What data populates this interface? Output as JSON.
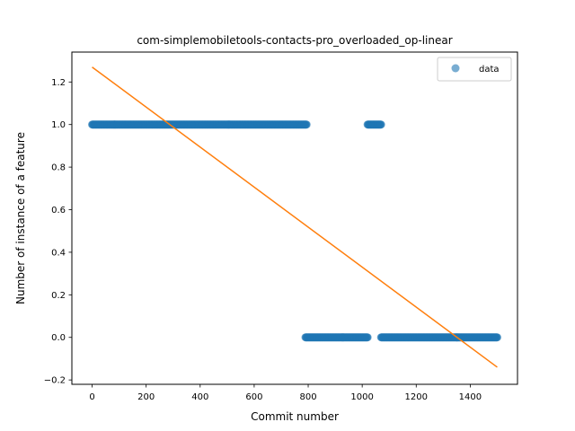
{
  "chart_data": {
    "type": "scatter",
    "title": "com-simplemobiletools-contacts-pro_overloaded_op-linear",
    "xlabel": "Commit number",
    "ylabel": "Number of instance of a feature",
    "xlim": [
      -75,
      1575
    ],
    "ylim": [
      -0.2205,
      1.3405
    ],
    "xticks": [
      0,
      200,
      400,
      600,
      800,
      1000,
      1200,
      1400
    ],
    "yticks": [
      -0.2,
      0.0,
      0.2,
      0.4,
      0.6,
      0.8,
      1.0,
      1.2
    ],
    "ytick_labels": [
      "−0.2",
      "0.0",
      "0.2",
      "0.4",
      "0.6",
      "0.8",
      "1.0",
      "1.2"
    ],
    "grid": false,
    "legend_position": "top-right",
    "series": [
      {
        "name": "data",
        "kind": "points",
        "color": "#1f77b4",
        "segments": [
          {
            "x_start": 0,
            "x_end": 795,
            "y": 1
          },
          {
            "x_start": 790,
            "x_end": 1020,
            "y": 0
          },
          {
            "x_start": 1020,
            "x_end": 1070,
            "y": 1
          },
          {
            "x_start": 1070,
            "x_end": 1500,
            "y": 0
          }
        ]
      },
      {
        "kind": "fit-line",
        "color": "#ff7f0e",
        "points": [
          [
            0,
            1.27
          ],
          [
            1500,
            -0.14
          ]
        ]
      }
    ]
  }
}
